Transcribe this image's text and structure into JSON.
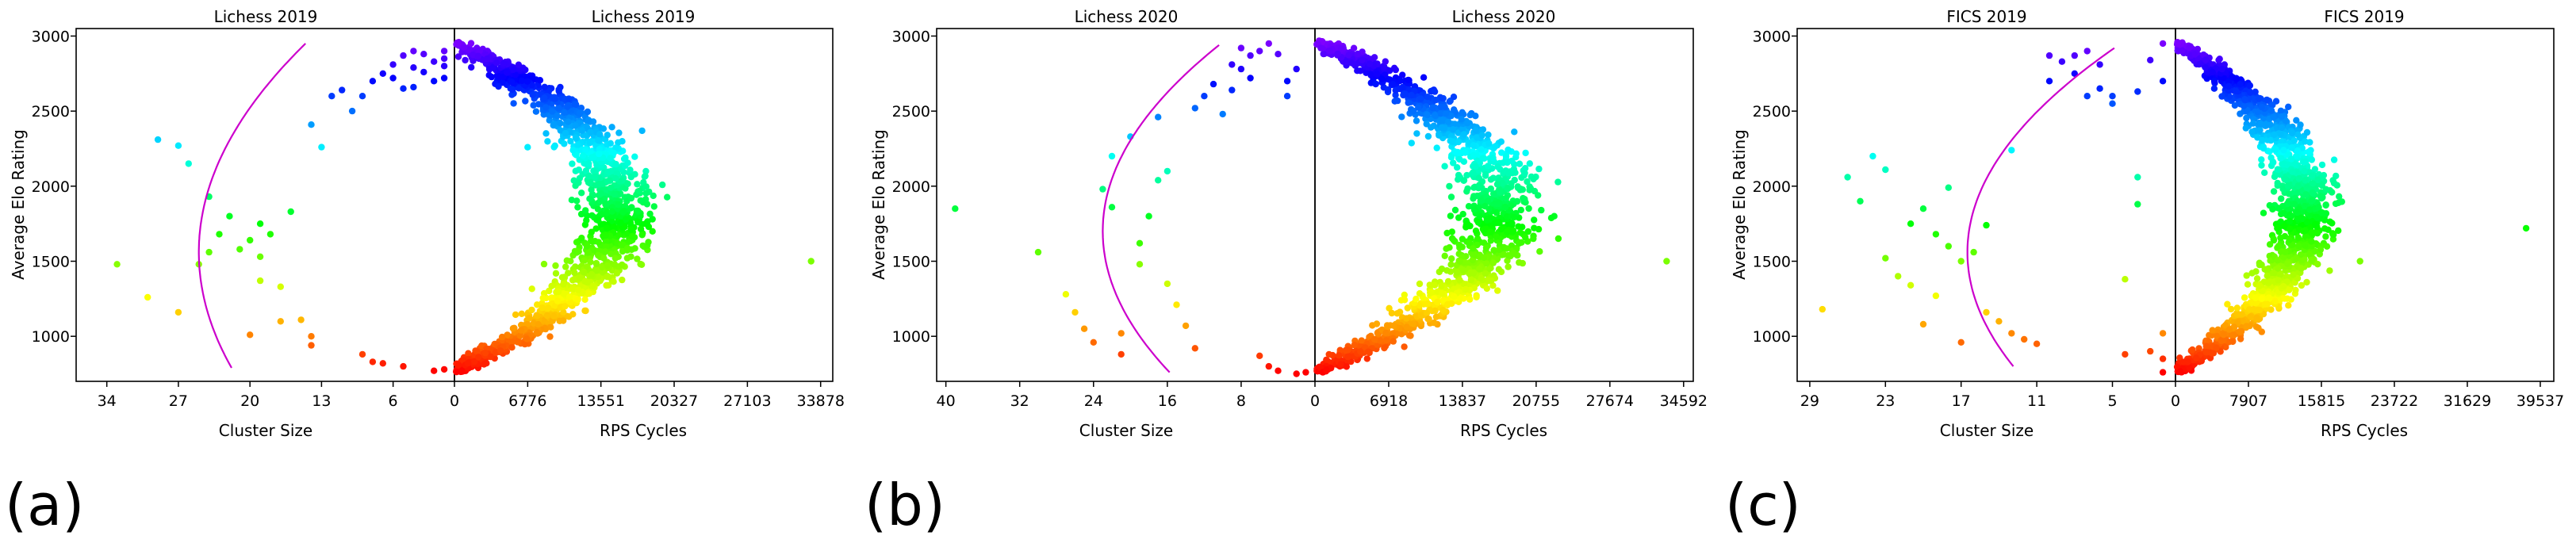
{
  "chart_data": [
    {
      "type": "scatter",
      "panel_label": "(a)",
      "left": {
        "title": "Lichess 2019",
        "xlabel": "Cluster Size",
        "ylabel": "Average Elo Rating",
        "xlim": [
          37,
          0
        ],
        "ylim": [
          700,
          3050
        ],
        "xticks": [
          34,
          27,
          20,
          13,
          6
        ],
        "xtick_labels": [
          "34",
          "27",
          "20",
          "13",
          "6"
        ],
        "yticks": [
          1000,
          1500,
          2000,
          2500,
          3000
        ],
        "ytick_labels": [
          "1000",
          "1500",
          "2000",
          "2500",
          "3000"
        ],
        "fit": {
          "vertex_size": 25,
          "vertex_rating": 1560,
          "curvature": 5.4e-06,
          "y_range": [
            790,
            2960
          ]
        },
        "points": [
          [
            33,
            1480
          ],
          [
            30,
            1260
          ],
          [
            29,
            2310
          ],
          [
            27,
            2270
          ],
          [
            26,
            2150
          ],
          [
            27,
            1160
          ],
          [
            24,
            1930
          ],
          [
            25,
            1480
          ],
          [
            24,
            1560
          ],
          [
            23,
            1680
          ],
          [
            22,
            1800
          ],
          [
            21,
            1580
          ],
          [
            20,
            1640
          ],
          [
            19,
            1750
          ],
          [
            20,
            1010
          ],
          [
            19,
            1370
          ],
          [
            19,
            1530
          ],
          [
            18,
            1680
          ],
          [
            17,
            1100
          ],
          [
            17,
            1330
          ],
          [
            15,
            1110
          ],
          [
            16,
            1830
          ],
          [
            14,
            2410
          ],
          [
            13,
            2260
          ],
          [
            14,
            1000
          ],
          [
            14,
            940
          ],
          [
            12,
            2600
          ],
          [
            11,
            2640
          ],
          [
            10,
            2500
          ],
          [
            9,
            2600
          ],
          [
            8,
            2700
          ],
          [
            7,
            2750
          ],
          [
            6,
            2810
          ],
          [
            5,
            2870
          ],
          [
            4,
            2900
          ],
          [
            9,
            880
          ],
          [
            8,
            830
          ],
          [
            7,
            820
          ],
          [
            5,
            800
          ],
          [
            2,
            770
          ],
          [
            1,
            780
          ],
          [
            1,
            2720
          ],
          [
            1,
            2800
          ],
          [
            1,
            2850
          ],
          [
            1,
            2900
          ],
          [
            2,
            2700
          ],
          [
            3,
            2760
          ],
          [
            2,
            2830
          ],
          [
            3,
            2880
          ],
          [
            4,
            2790
          ],
          [
            4,
            2660
          ],
          [
            6,
            2720
          ],
          [
            5,
            2650
          ]
        ]
      },
      "right": {
        "title": "Lichess 2019",
        "xlabel": "RPS Cycles",
        "xlim": [
          0,
          35000
        ],
        "ylim": [
          700,
          3050
        ],
        "xticks": [
          0,
          6776,
          13551,
          20327,
          27103,
          33878
        ],
        "xtick_labels": [
          "0",
          "6776",
          "13551",
          "20327",
          "27103",
          "33878"
        ],
        "band": {
          "center_max": 15000,
          "spread": 1700,
          "y_range": [
            760,
            2960
          ]
        },
        "outliers": [
          [
            33000,
            1500
          ]
        ]
      }
    },
    {
      "type": "scatter",
      "panel_label": "(b)",
      "left": {
        "title": "Lichess 2020",
        "xlabel": "Cluster Size",
        "ylabel": "Average Elo Rating",
        "xlim": [
          41,
          0
        ],
        "ylim": [
          700,
          3050
        ],
        "xticks": [
          40,
          32,
          24,
          16,
          8
        ],
        "xtick_labels": [
          "40",
          "32",
          "24",
          "16",
          "8"
        ],
        "yticks": [
          1000,
          1500,
          2000,
          2500,
          3000
        ],
        "ytick_labels": [
          "1000",
          "1500",
          "2000",
          "2500",
          "3000"
        ],
        "fit": {
          "vertex_size": 23,
          "vertex_rating": 1700,
          "curvature": 8.2e-06,
          "y_range": [
            760,
            2950
          ]
        },
        "points": [
          [
            39,
            1850
          ],
          [
            30,
            1560
          ],
          [
            27,
            1280
          ],
          [
            26,
            1160
          ],
          [
            25,
            1050
          ],
          [
            24,
            960
          ],
          [
            23,
            1980
          ],
          [
            22,
            2200
          ],
          [
            22,
            1860
          ],
          [
            21,
            1020
          ],
          [
            21,
            880
          ],
          [
            20,
            2330
          ],
          [
            19,
            1620
          ],
          [
            19,
            1480
          ],
          [
            18,
            1800
          ],
          [
            17,
            2460
          ],
          [
            17,
            2040
          ],
          [
            16,
            2100
          ],
          [
            16,
            1350
          ],
          [
            15,
            1210
          ],
          [
            14,
            1070
          ],
          [
            13,
            920
          ],
          [
            13,
            2520
          ],
          [
            12,
            2600
          ],
          [
            11,
            2680
          ],
          [
            10,
            2480
          ],
          [
            9,
            2640
          ],
          [
            8,
            2780
          ],
          [
            7,
            2870
          ],
          [
            6,
            2900
          ],
          [
            5,
            2950
          ],
          [
            4,
            2880
          ],
          [
            3,
            2700
          ],
          [
            3,
            2600
          ],
          [
            2,
            2780
          ],
          [
            6,
            870
          ],
          [
            5,
            800
          ],
          [
            4,
            770
          ],
          [
            2,
            750
          ],
          [
            1,
            760
          ],
          [
            8,
            2920
          ],
          [
            9,
            2810
          ],
          [
            7,
            2720
          ]
        ]
      },
      "right": {
        "title": "Lichess 2020",
        "xlabel": "RPS Cycles",
        "xlim": [
          0,
          35500
        ],
        "ylim": [
          700,
          3050
        ],
        "xticks": [
          0,
          6918,
          13837,
          20755,
          27674,
          34592
        ],
        "xtick_labels": [
          "0",
          "6918",
          "13837",
          "20755",
          "27674",
          "34592"
        ],
        "band": {
          "center_max": 17300,
          "spread": 1900,
          "y_range": [
            760,
            2970
          ]
        },
        "outliers": [
          [
            33000,
            1500
          ]
        ]
      }
    },
    {
      "type": "scatter",
      "panel_label": "(c)",
      "left": {
        "title": "FICS 2019",
        "xlabel": "Cluster Size",
        "ylabel": "Average Elo Rating",
        "xlim": [
          30,
          0
        ],
        "ylim": [
          700,
          3050
        ],
        "xticks": [
          29,
          23,
          17,
          11,
          5
        ],
        "xtick_labels": [
          "29",
          "23",
          "17",
          "11",
          "5"
        ],
        "yticks": [
          1000,
          1500,
          2000,
          2500,
          3000
        ],
        "ytick_labels": [
          "1000",
          "1500",
          "2000",
          "2500",
          "3000"
        ],
        "fit": {
          "vertex_size": 16.5,
          "vertex_rating": 1560,
          "curvature": 6.3e-06,
          "y_range": [
            800,
            2930
          ]
        },
        "points": [
          [
            28,
            1180
          ],
          [
            26,
            2060
          ],
          [
            25,
            1900
          ],
          [
            24,
            2200
          ],
          [
            23,
            2110
          ],
          [
            23,
            1520
          ],
          [
            22,
            1400
          ],
          [
            21,
            1750
          ],
          [
            21,
            1340
          ],
          [
            20,
            1080
          ],
          [
            20,
            1850
          ],
          [
            19,
            1270
          ],
          [
            19,
            1680
          ],
          [
            18,
            1990
          ],
          [
            18,
            1600
          ],
          [
            17,
            1500
          ],
          [
            17,
            960
          ],
          [
            16,
            1560
          ],
          [
            15,
            1740
          ],
          [
            15,
            1160
          ],
          [
            14,
            1100
          ],
          [
            13,
            2240
          ],
          [
            13,
            1020
          ],
          [
            12,
            980
          ],
          [
            11,
            950
          ],
          [
            10,
            2700
          ],
          [
            10,
            2870
          ],
          [
            9,
            2830
          ],
          [
            8,
            2870
          ],
          [
            8,
            2750
          ],
          [
            7,
            2900
          ],
          [
            6,
            2810
          ],
          [
            5,
            2600
          ],
          [
            5,
            2550
          ],
          [
            4,
            1380
          ],
          [
            4,
            880
          ],
          [
            3,
            1880
          ],
          [
            2,
            900
          ],
          [
            1,
            850
          ],
          [
            1,
            760
          ],
          [
            2,
            2840
          ],
          [
            1,
            2950
          ],
          [
            1,
            2700
          ],
          [
            3,
            2630
          ],
          [
            6,
            2650
          ],
          [
            7,
            2600
          ],
          [
            1,
            1020
          ],
          [
            3,
            2060
          ]
        ]
      },
      "right": {
        "title": "FICS 2019",
        "xlabel": "RPS Cycles",
        "xlim": [
          0,
          41000
        ],
        "ylim": [
          700,
          3050
        ],
        "xticks": [
          0,
          7907,
          15815,
          23722,
          31629,
          39537
        ],
        "xtick_labels": [
          "0",
          "7907",
          "15815",
          "23722",
          "31629",
          "39537"
        ],
        "band": {
          "center_max": 14000,
          "spread": 1600,
          "y_range": [
            760,
            2960
          ]
        },
        "outliers": [
          [
            38000,
            1720
          ],
          [
            20000,
            1500
          ]
        ]
      }
    }
  ]
}
